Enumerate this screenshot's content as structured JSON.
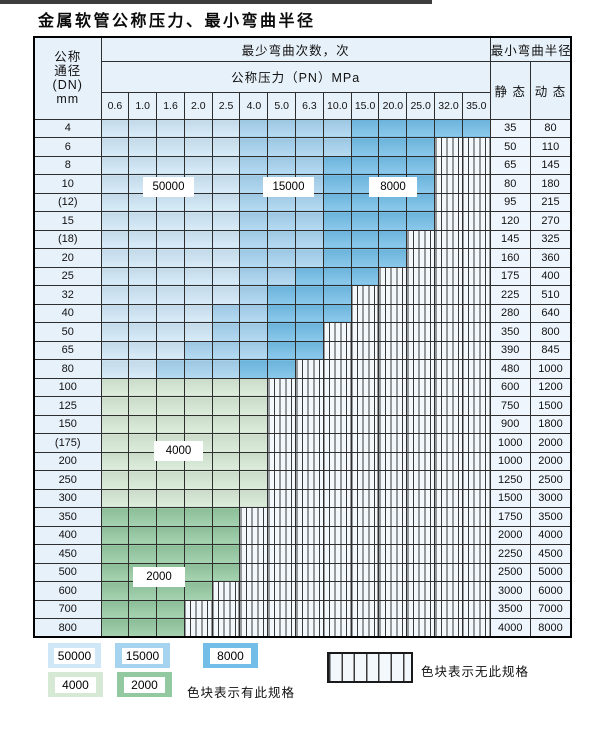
{
  "page": {
    "title": "金属软管公称压力、最小弯曲半径"
  },
  "table": {
    "header": {
      "dn_lines": [
        "公称",
        "通径",
        "(DN)",
        "mm"
      ],
      "bend_cycles": "最少弯曲次数，次",
      "pressure": "公称压力（PN）MPa",
      "min_bend_radius": "最小弯曲半径",
      "static": "静 态",
      "dynamic": "动 态",
      "pressures": [
        "0.6",
        "1.0",
        "1.6",
        "2.0",
        "2.5",
        "4.0",
        "5.0",
        "6.3",
        "10.0",
        "15.0",
        "20.0",
        "25.0",
        "32.0",
        "35.0"
      ]
    },
    "rows": [
      {
        "dn": "4",
        "static": "35",
        "dynamic": "80",
        "zones": [
          {
            "cycles": "50000",
            "from": 0,
            "to": 4
          },
          {
            "cycles": "15000",
            "from": 5,
            "to": 8
          },
          {
            "cycles": "8000",
            "from": 9,
            "to": 13
          }
        ]
      },
      {
        "dn": "6",
        "static": "50",
        "dynamic": "110",
        "zones": [
          {
            "cycles": "50000",
            "from": 0,
            "to": 4
          },
          {
            "cycles": "15000",
            "from": 5,
            "to": 8
          },
          {
            "cycles": "8000",
            "from": 9,
            "to": 11
          }
        ]
      },
      {
        "dn": "8",
        "static": "65",
        "dynamic": "145",
        "zones": [
          {
            "cycles": "50000",
            "from": 0,
            "to": 4
          },
          {
            "cycles": "15000",
            "from": 5,
            "to": 7
          },
          {
            "cycles": "8000",
            "from": 8,
            "to": 11
          }
        ]
      },
      {
        "dn": "10",
        "static": "80",
        "dynamic": "180",
        "zones": [
          {
            "cycles": "50000",
            "from": 0,
            "to": 4
          },
          {
            "cycles": "15000",
            "from": 5,
            "to": 7
          },
          {
            "cycles": "8000",
            "from": 8,
            "to": 11
          }
        ]
      },
      {
        "dn": "(12)",
        "static": "95",
        "dynamic": "215",
        "zones": [
          {
            "cycles": "50000",
            "from": 0,
            "to": 4
          },
          {
            "cycles": "15000",
            "from": 5,
            "to": 7
          },
          {
            "cycles": "8000",
            "from": 8,
            "to": 11
          }
        ]
      },
      {
        "dn": "15",
        "static": "120",
        "dynamic": "270",
        "zones": [
          {
            "cycles": "50000",
            "from": 0,
            "to": 4
          },
          {
            "cycles": "15000",
            "from": 5,
            "to": 7
          },
          {
            "cycles": "8000",
            "from": 8,
            "to": 11
          }
        ]
      },
      {
        "dn": "(18)",
        "static": "145",
        "dynamic": "325",
        "zones": [
          {
            "cycles": "50000",
            "from": 0,
            "to": 4
          },
          {
            "cycles": "15000",
            "from": 5,
            "to": 7
          },
          {
            "cycles": "8000",
            "from": 8,
            "to": 10
          }
        ]
      },
      {
        "dn": "20",
        "static": "160",
        "dynamic": "360",
        "zones": [
          {
            "cycles": "50000",
            "from": 0,
            "to": 4
          },
          {
            "cycles": "15000",
            "from": 5,
            "to": 7
          },
          {
            "cycles": "8000",
            "from": 8,
            "to": 10
          }
        ]
      },
      {
        "dn": "25",
        "static": "175",
        "dynamic": "400",
        "zones": [
          {
            "cycles": "50000",
            "from": 0,
            "to": 4
          },
          {
            "cycles": "15000",
            "from": 5,
            "to": 6
          },
          {
            "cycles": "8000",
            "from": 7,
            "to": 9
          }
        ]
      },
      {
        "dn": "32",
        "static": "225",
        "dynamic": "510",
        "zones": [
          {
            "cycles": "50000",
            "from": 0,
            "to": 4
          },
          {
            "cycles": "15000",
            "from": 5,
            "to": 5
          },
          {
            "cycles": "8000",
            "from": 6,
            "to": 8
          }
        ]
      },
      {
        "dn": "40",
        "static": "280",
        "dynamic": "640",
        "zones": [
          {
            "cycles": "50000",
            "from": 0,
            "to": 3
          },
          {
            "cycles": "15000",
            "from": 4,
            "to": 5
          },
          {
            "cycles": "8000",
            "from": 6,
            "to": 8
          }
        ]
      },
      {
        "dn": "50",
        "static": "350",
        "dynamic": "800",
        "zones": [
          {
            "cycles": "50000",
            "from": 0,
            "to": 3
          },
          {
            "cycles": "15000",
            "from": 4,
            "to": 5
          },
          {
            "cycles": "8000",
            "from": 6,
            "to": 7
          }
        ]
      },
      {
        "dn": "65",
        "static": "390",
        "dynamic": "845",
        "zones": [
          {
            "cycles": "50000",
            "from": 0,
            "to": 2
          },
          {
            "cycles": "15000",
            "from": 3,
            "to": 5
          },
          {
            "cycles": "8000",
            "from": 6,
            "to": 7
          }
        ]
      },
      {
        "dn": "80",
        "static": "480",
        "dynamic": "1000",
        "zones": [
          {
            "cycles": "50000",
            "from": 0,
            "to": 1
          },
          {
            "cycles": "15000",
            "from": 2,
            "to": 4
          },
          {
            "cycles": "8000",
            "from": 5,
            "to": 6
          }
        ]
      },
      {
        "dn": "100",
        "static": "600",
        "dynamic": "1200",
        "zones": [
          {
            "cycles": "4000",
            "from": 0,
            "to": 5
          }
        ]
      },
      {
        "dn": "125",
        "static": "750",
        "dynamic": "1500",
        "zones": [
          {
            "cycles": "4000",
            "from": 0,
            "to": 5
          }
        ]
      },
      {
        "dn": "150",
        "static": "900",
        "dynamic": "1800",
        "zones": [
          {
            "cycles": "4000",
            "from": 0,
            "to": 5
          }
        ]
      },
      {
        "dn": "(175)",
        "static": "1000",
        "dynamic": "2000",
        "zones": [
          {
            "cycles": "4000",
            "from": 0,
            "to": 5
          }
        ]
      },
      {
        "dn": "200",
        "static": "1000",
        "dynamic": "2000",
        "zones": [
          {
            "cycles": "4000",
            "from": 0,
            "to": 5
          }
        ]
      },
      {
        "dn": "250",
        "static": "1250",
        "dynamic": "2500",
        "zones": [
          {
            "cycles": "4000",
            "from": 0,
            "to": 5
          }
        ]
      },
      {
        "dn": "300",
        "static": "1500",
        "dynamic": "3000",
        "zones": [
          {
            "cycles": "4000",
            "from": 0,
            "to": 5
          }
        ]
      },
      {
        "dn": "350",
        "static": "1750",
        "dynamic": "3500",
        "zones": [
          {
            "cycles": "2000",
            "from": 0,
            "to": 4
          }
        ]
      },
      {
        "dn": "400",
        "static": "2000",
        "dynamic": "4000",
        "zones": [
          {
            "cycles": "2000",
            "from": 0,
            "to": 4
          }
        ]
      },
      {
        "dn": "450",
        "static": "2250",
        "dynamic": "4500",
        "zones": [
          {
            "cycles": "2000",
            "from": 0,
            "to": 4
          }
        ]
      },
      {
        "dn": "500",
        "static": "2500",
        "dynamic": "5000",
        "zones": [
          {
            "cycles": "2000",
            "from": 0,
            "to": 4
          }
        ]
      },
      {
        "dn": "600",
        "static": "3000",
        "dynamic": "6000",
        "zones": [
          {
            "cycles": "2000",
            "from": 0,
            "to": 3
          }
        ]
      },
      {
        "dn": "700",
        "static": "3500",
        "dynamic": "7000",
        "zones": [
          {
            "cycles": "2000",
            "from": 0,
            "to": 2
          }
        ]
      },
      {
        "dn": "800",
        "static": "4000",
        "dynamic": "8000",
        "zones": [
          {
            "cycles": "2000",
            "from": 0,
            "to": 2
          }
        ]
      }
    ],
    "overlays": [
      {
        "text": "50000"
      },
      {
        "text": "15000"
      },
      {
        "text": "8000"
      },
      {
        "text": "4000"
      },
      {
        "text": "2000"
      }
    ]
  },
  "legend": {
    "swatches": [
      {
        "label": "50000"
      },
      {
        "label": "15000"
      },
      {
        "label": "8000"
      },
      {
        "label": "4000"
      },
      {
        "label": "2000"
      }
    ],
    "has_spec_text": "色块表示有此规格",
    "no_spec_text": "色块表示无此规格"
  },
  "colors": {
    "50000": "#cfe7f7",
    "15000": "#a6d3f0",
    "8000": "#72bee8",
    "4000": "#d6e9d5",
    "2000": "#93c9a0",
    "striped_bg": "#f3f8fd",
    "striped_line": "#3b3b3b",
    "header_bg": "#e7f1fa",
    "value_bg": "#eef5fc",
    "grid": "#2e2e2e"
  }
}
